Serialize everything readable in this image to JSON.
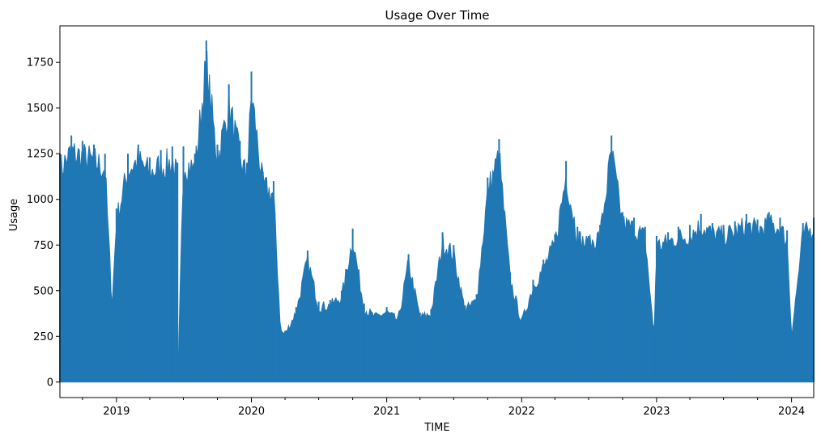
{
  "chart_data": {
    "type": "area",
    "title": "Usage Over Time",
    "xlabel": "TIME",
    "ylabel": "Usage",
    "xlim": [
      "2018-08-01",
      "2024-03-01"
    ],
    "ylim": [
      -85,
      1950
    ],
    "grid": false,
    "legend": "none",
    "series_color": "#1f77b4",
    "x_ticks": [
      "2019",
      "2020",
      "2021",
      "2022",
      "2023",
      "2024"
    ],
    "y_ticks": [
      0,
      250,
      500,
      750,
      1000,
      1250,
      1500,
      1750
    ],
    "series": [
      {
        "x": [
          "2018-08-01",
          "2018-09-01",
          "2018-10-01",
          "2018-11-01",
          "2018-12-01",
          "2018-12-20",
          "2019-01-01",
          "2019-02-01",
          "2019-03-01",
          "2019-04-01",
          "2019-05-01",
          "2019-06-01",
          "2019-06-15",
          "2019-06-16",
          "2019-07-01",
          "2019-08-01",
          "2019-09-01",
          "2019-10-01",
          "2019-11-01",
          "2019-12-01",
          "2019-12-20",
          "2020-01-01",
          "2020-02-01",
          "2020-03-01",
          "2020-03-20",
          "2020-04-01",
          "2020-05-01",
          "2020-06-01",
          "2020-07-01",
          "2020-08-01",
          "2020-09-01",
          "2020-10-01",
          "2020-11-01",
          "2020-12-01",
          "2021-01-01",
          "2021-02-01",
          "2021-03-01",
          "2021-04-01",
          "2021-05-01",
          "2021-06-01",
          "2021-07-01",
          "2021-08-01",
          "2021-09-01",
          "2021-10-01",
          "2021-11-01",
          "2021-12-01",
          "2022-01-01",
          "2022-02-01",
          "2022-03-01",
          "2022-04-01",
          "2022-05-01",
          "2022-06-01",
          "2022-07-01",
          "2022-08-01",
          "2022-09-01",
          "2022-10-01",
          "2022-11-01",
          "2022-12-01",
          "2022-12-25",
          "2023-01-01",
          "2023-02-01",
          "2023-03-01",
          "2023-04-01",
          "2023-05-01",
          "2023-06-01",
          "2023-07-01",
          "2023-08-01",
          "2023-09-01",
          "2023-10-01",
          "2023-11-01",
          "2023-12-01",
          "2023-12-20",
          "2024-01-01",
          "2024-02-01",
          "2024-03-01"
        ],
        "values": [
          1250,
          1350,
          1320,
          1300,
          1250,
          450,
          950,
          1250,
          1300,
          1230,
          1270,
          1290,
          1200,
          0,
          1290,
          1250,
          1870,
          1300,
          1630,
          1320,
          1200,
          1700,
          1150,
          1100,
          300,
          280,
          410,
          720,
          440,
          450,
          500,
          840,
          430,
          380,
          410,
          360,
          700,
          380,
          400,
          820,
          750,
          420,
          480,
          1120,
          1330,
          600,
          350,
          560,
          670,
          810,
          1210,
          850,
          800,
          860,
          1350,
          930,
          900,
          850,
          260,
          800,
          820,
          850,
          860,
          920,
          870,
          860,
          880,
          920,
          890,
          930,
          900,
          830,
          270,
          870,
          900
        ]
      }
    ],
    "mins": [
      0,
      0,
      0,
      0,
      0,
      0,
      0,
      0,
      0,
      0,
      0,
      0,
      0,
      0,
      0,
      0,
      0,
      0,
      0,
      0,
      0,
      0,
      0,
      0,
      0,
      0,
      0,
      0,
      0,
      0,
      0,
      0,
      0,
      0,
      0,
      0,
      0,
      0,
      0,
      0,
      0,
      0,
      0,
      0,
      0,
      0,
      0,
      0,
      0,
      0,
      0,
      0,
      0,
      0,
      0,
      0,
      0,
      0,
      0,
      0,
      0,
      0,
      0,
      0,
      0,
      0,
      0,
      0,
      0,
      0,
      0,
      0,
      0,
      0,
      0
    ]
  }
}
